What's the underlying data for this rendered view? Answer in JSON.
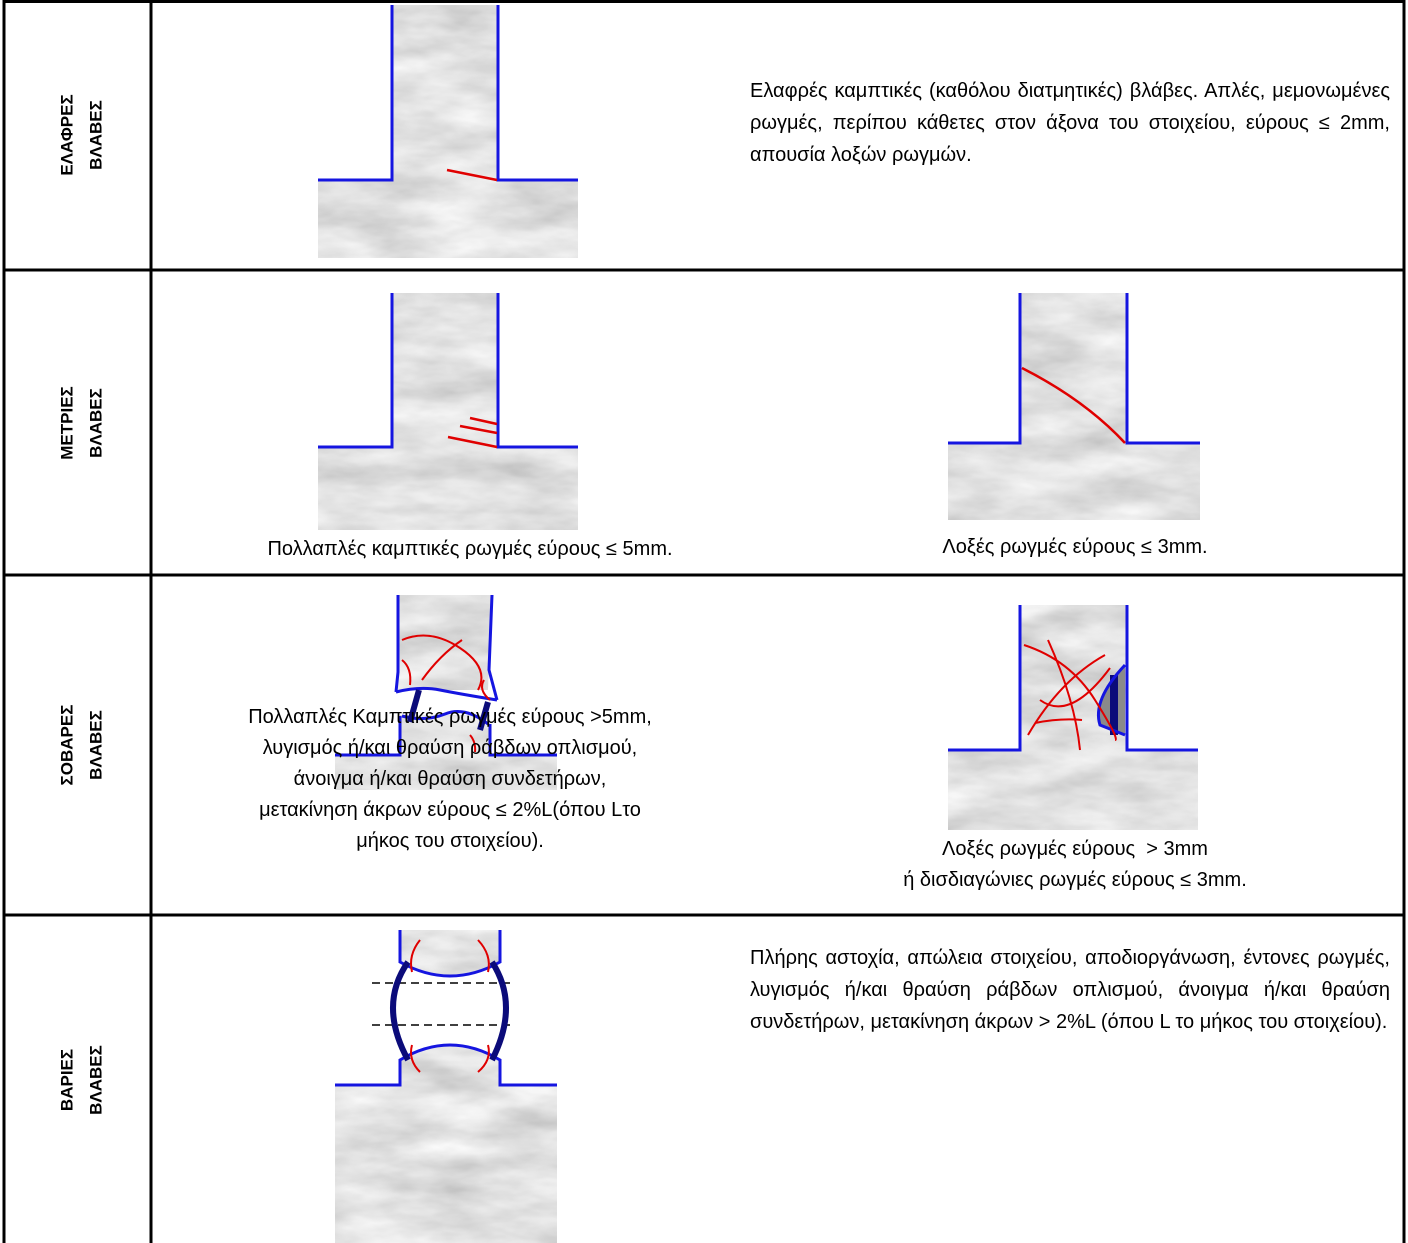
{
  "table": {
    "rows": [
      {
        "label": [
          "ΕΛΑΦΡΕΣ",
          "ΒΛΑΒΕΣ"
        ],
        "description": "Ελαφρές καμπτικές (καθόλου διατμητικές) βλάβες. Απλές, μεμονωμένες ρωγμές, περίπου κάθετες στον άξονα του στοιχείου, εύρους ≤ 2mm, απουσία λοξών ρωγμών."
      },
      {
        "label": [
          "ΜΕΤΡΙΕΣ",
          "ΒΛΑΒΕΣ"
        ],
        "figures": [
          {
            "caption": [
              "Πολλαπλές καμπτικές ρωγμές εύρους ≤ 5mm."
            ]
          },
          {
            "caption": [
              "Λοξές ρωγμές εύρους ≤ 3mm."
            ]
          }
        ]
      },
      {
        "label": [
          "ΣΟΒΑΡΕΣ",
          "ΒΛΑΒΕΣ"
        ],
        "figures": [
          {
            "caption": [
              "Πολλαπλές Καμπτικές ρωγμές εύρους >5mm,",
              "λυγισμός ή/και θραύση ράβδων οπλισμού,",
              "άνοιγμα ή/και θραύση συνδετήρων,",
              "μετακίνηση άκρων εύρους ≤ 2%L(όπου Lτο",
              "μήκος του στοιχείου)."
            ]
          },
          {
            "caption": [
              "Λοξές ρωγμές εύρους  > 3mm",
              "ή δισδιαγώνιες ρωγμές εύρους ≤ 3mm."
            ]
          }
        ]
      },
      {
        "label": [
          "ΒΑΡΙΕΣ",
          "ΒΛΑΒΕΣ"
        ],
        "description": "Πλήρης αστοχία, απώλεια στοιχείου, αποδιοργάνωση, έντονες ρωγμές, λυγισμός ή/και θραύση ράβδων οπλισμού, άνοιγμα ή/και θραύση συνδετήρων, μετακίνηση άκρων > 2%L (όπου L το μήκος του στοιχείου)."
      }
    ]
  }
}
